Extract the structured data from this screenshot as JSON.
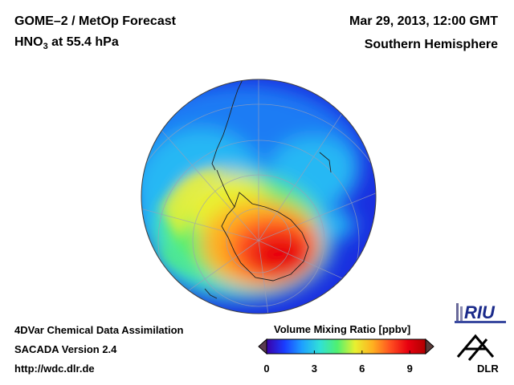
{
  "header": {
    "title": "GOME–2 / MetOp Forecast",
    "species_prefix": "HNO",
    "species_subscript": "3",
    "species_suffix": " at 55.4 hPa",
    "date": "Mar 29, 2013, 12:00 GMT",
    "region": "Southern Hemisphere"
  },
  "footer": {
    "line1": "4DVar Chemical Data Assimilation",
    "line2": "SACADA Version 2.4",
    "line3": "http://wdc.dlr.de"
  },
  "colorbar": {
    "title": "Volume Mixing Ratio [ppbv]",
    "ticks": [
      "0",
      "3",
      "6",
      "9"
    ],
    "tick_values": [
      0,
      3,
      6,
      9
    ],
    "range": [
      0,
      10
    ],
    "colors": [
      "#3a00a8",
      "#1a3cff",
      "#1ea0ff",
      "#30e0d8",
      "#50f070",
      "#e8f030",
      "#ffb020",
      "#ff5020",
      "#e80010",
      "#b00000"
    ]
  },
  "logos": {
    "riu": "RIU",
    "dlr": "DLR"
  },
  "map": {
    "projection": "orthographic-south-pole",
    "field": "HNO3 volume mixing ratio"
  }
}
